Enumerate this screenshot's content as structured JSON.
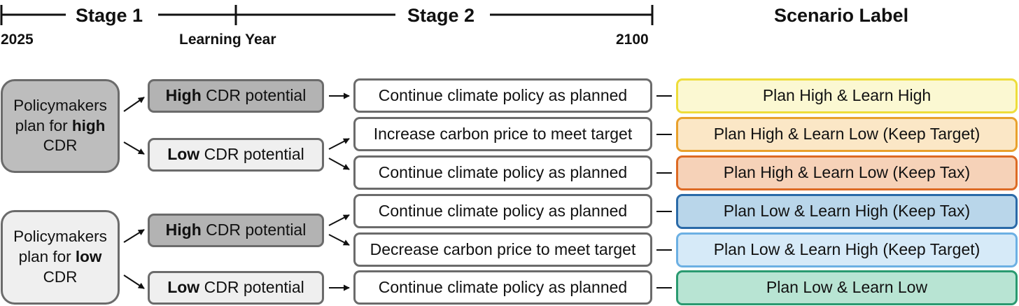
{
  "timeline": {
    "stage1": "Stage 1",
    "stage2": "Stage 2",
    "start_year": "2025",
    "learning_year": "Learning Year",
    "end_year": "2100",
    "scenario_header": "Scenario Label"
  },
  "policy_high": {
    "pre": "Policymakers plan for ",
    "bold": "high",
    "post": "CDR"
  },
  "policy_low": {
    "pre": "Policymakers plan for ",
    "bold": "low",
    "post": "CDR"
  },
  "cdr": [
    {
      "bold": "High",
      "rest": " CDR potential"
    },
    {
      "bold": "Low",
      "rest": " CDR potential"
    },
    {
      "bold": "High",
      "rest": " CDR potential"
    },
    {
      "bold": "Low",
      "rest": " CDR potential"
    }
  ],
  "actions": [
    "Continue climate policy as planned",
    "Increase carbon price to meet target",
    "Continue climate policy as planned",
    "Continue climate policy as planned",
    "Decrease carbon price to meet target",
    "Continue climate policy as planned"
  ],
  "scenarios": [
    {
      "label": "Plan High & Learn High",
      "fill": "#fbf8d2",
      "border": "#eedd3a"
    },
    {
      "label": "Plan High & Learn Low (Keep Target)",
      "fill": "#fbe7c6",
      "border": "#e9a12c"
    },
    {
      "label": "Plan High & Learn Low (Keep Tax)",
      "fill": "#f6d2b8",
      "border": "#dd6a24"
    },
    {
      "label": "Plan Low & Learn High (Keep Tax)",
      "fill": "#b9d6ea",
      "border": "#2a6aa8"
    },
    {
      "label": "Plan Low & Learn High (Keep Target)",
      "fill": "#d6eaf8",
      "border": "#6cb0e3"
    },
    {
      "label": "Plan Low & Learn Low",
      "fill": "#b8e4d3",
      "border": "#2a9a70"
    }
  ]
}
